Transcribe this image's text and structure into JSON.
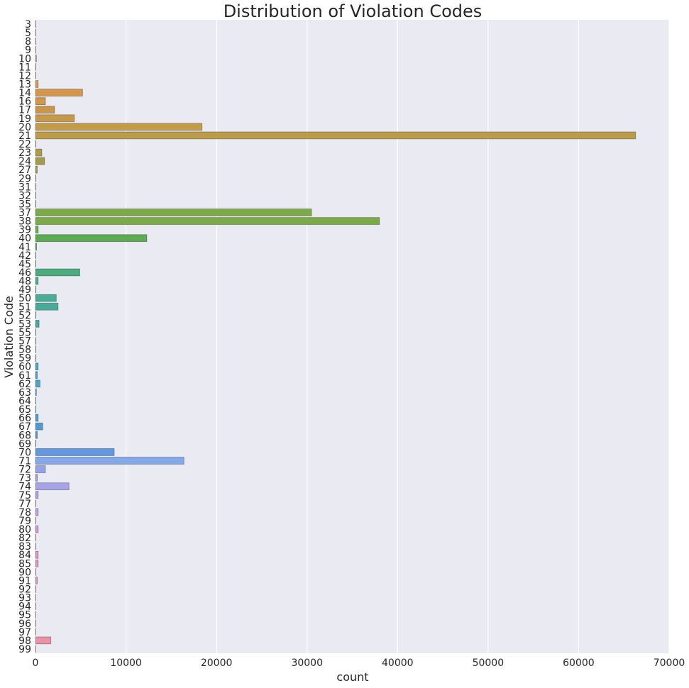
{
  "chart_data": {
    "type": "bar",
    "orientation": "horizontal",
    "title": "Distribution of Violation Codes",
    "xlabel": "count",
    "ylabel": "Violation Code",
    "xlim": [
      0,
      70000
    ],
    "xticks": [
      0,
      10000,
      20000,
      30000,
      40000,
      50000,
      60000,
      70000
    ],
    "grid": true,
    "categories": [
      "3",
      "5",
      "8",
      "9",
      "10",
      "11",
      "12",
      "13",
      "14",
      "16",
      "17",
      "19",
      "20",
      "21",
      "22",
      "23",
      "24",
      "27",
      "29",
      "31",
      "32",
      "35",
      "37",
      "38",
      "39",
      "40",
      "41",
      "42",
      "45",
      "46",
      "48",
      "49",
      "50",
      "51",
      "52",
      "53",
      "55",
      "57",
      "58",
      "59",
      "60",
      "61",
      "62",
      "63",
      "64",
      "65",
      "66",
      "67",
      "68",
      "69",
      "70",
      "71",
      "72",
      "73",
      "74",
      "75",
      "77",
      "78",
      "79",
      "80",
      "82",
      "83",
      "84",
      "85",
      "90",
      "91",
      "92",
      "93",
      "94",
      "95",
      "96",
      "97",
      "98",
      "99"
    ],
    "values": [
      10,
      10,
      10,
      10,
      100,
      10,
      10,
      300,
      5200,
      1100,
      2100,
      4300,
      18400,
      66300,
      50,
      700,
      1000,
      200,
      30,
      30,
      30,
      30,
      30500,
      38000,
      300,
      12300,
      120,
      30,
      30,
      4900,
      300,
      30,
      2300,
      2500,
      50,
      400,
      30,
      30,
      30,
      30,
      300,
      200,
      500,
      100,
      30,
      30,
      300,
      800,
      200,
      30,
      8700,
      16400,
      1100,
      200,
      3700,
      300,
      30,
      300,
      30,
      300,
      30,
      30,
      300,
      300,
      30,
      200,
      50,
      30,
      30,
      30,
      30,
      30,
      1700,
      30
    ],
    "colors": [
      "#e994b1",
      "#e89997",
      "#e79f7c",
      "#e79f7c",
      "#e09a6b",
      "#dd9b60",
      "#dc9c58",
      "#d99a54",
      "#d4964a",
      "#cf974a",
      "#c9964a",
      "#c69a4a",
      "#c39c48",
      "#bb9c48",
      "#b69c48",
      "#ad9c48",
      "#a49c48",
      "#9f9f48",
      "#9aa048",
      "#94a448",
      "#8ca848",
      "#84a848",
      "#7daa48",
      "#7aab48",
      "#6aad4c",
      "#5cab52",
      "#57aa5c",
      "#55aa66",
      "#50aa72",
      "#4aab7c",
      "#4aab86",
      "#4aab90",
      "#4aab96",
      "#48ab9a",
      "#48aaa2",
      "#48aaa8",
      "#48aaae",
      "#48aab4",
      "#48aab8",
      "#48aabc",
      "#48a8c0",
      "#48a6c4",
      "#48a4c6",
      "#4aa2c8",
      "#4ca0ca",
      "#4e9ecc",
      "#509ccc",
      "#529ace",
      "#5698d0",
      "#5a96d2",
      "#6298e0",
      "#84a8e8",
      "#92a4e6",
      "#9ca2e6",
      "#a8a2e8",
      "#b0a0e6",
      "#b89ee6",
      "#c09ce4",
      "#c89ae0",
      "#cc98dc",
      "#d098d8",
      "#d498d4",
      "#d898cc",
      "#da98c4",
      "#dc98bc",
      "#de98b8",
      "#e098b4",
      "#e298b0",
      "#e498ae",
      "#e698ac",
      "#e898aa",
      "#e898a8",
      "#e892a6",
      "#e894a8"
    ]
  }
}
